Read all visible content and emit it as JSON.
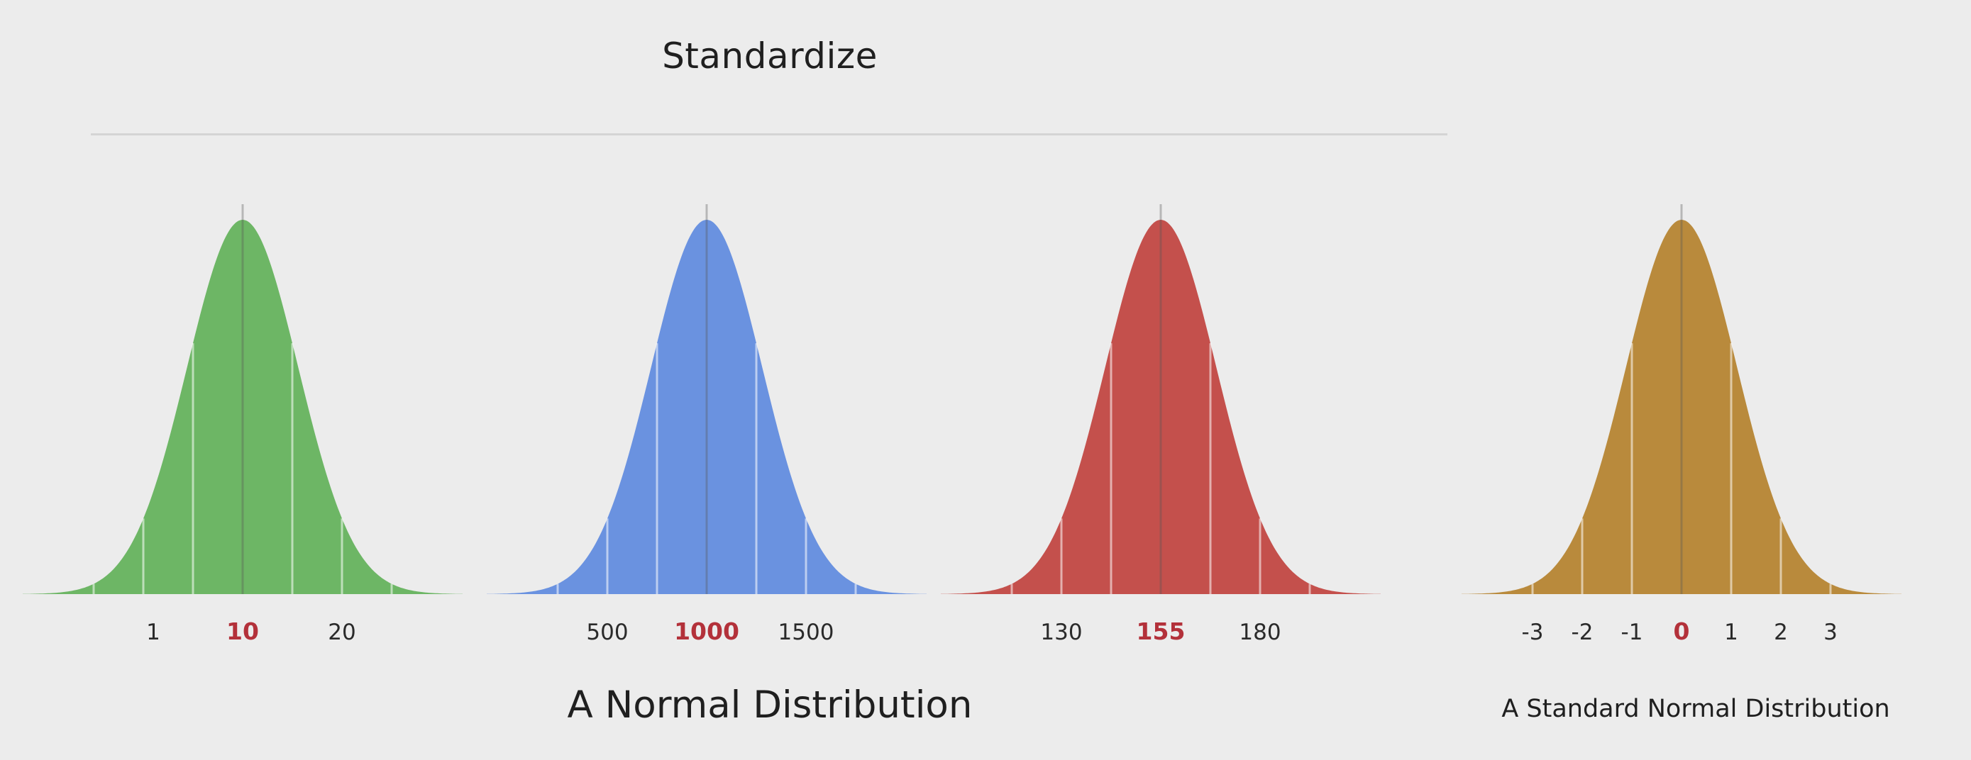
{
  "title": "Standardize",
  "captions": {
    "normal": "A Normal Distribution",
    "standard_normal": "A Standard Normal Distribution"
  },
  "colors": {
    "background": "#ececec",
    "divider": "#d4d4d4",
    "mean_label": "#b3313a",
    "tick_label": "#2a2a2a",
    "green": "#6db665",
    "blue": "#6a92e0",
    "red": "#c4504c",
    "gold": "#b98a3c"
  },
  "chart_data": [
    {
      "type": "area",
      "color": "green",
      "mean": 10,
      "std": 5,
      "tick_labels": [
        {
          "value": 1,
          "label": "1"
        },
        {
          "value": 10,
          "label": "10",
          "highlight": true
        },
        {
          "value": 20,
          "label": "20"
        }
      ]
    },
    {
      "type": "area",
      "color": "blue",
      "mean": 1000,
      "std": 250,
      "tick_labels": [
        {
          "value": 500,
          "label": "500"
        },
        {
          "value": 1000,
          "label": "1000",
          "highlight": true
        },
        {
          "value": 1500,
          "label": "1500"
        }
      ]
    },
    {
      "type": "area",
      "color": "red",
      "mean": 155,
      "std": 12.5,
      "tick_labels": [
        {
          "value": 130,
          "label": "130"
        },
        {
          "value": 155,
          "label": "155",
          "highlight": true
        },
        {
          "value": 180,
          "label": "180"
        }
      ]
    },
    {
      "type": "area",
      "color": "gold",
      "mean": 0,
      "std": 1,
      "tick_labels": [
        {
          "value": -3,
          "label": "-3"
        },
        {
          "value": -2,
          "label": "-2"
        },
        {
          "value": -1,
          "label": "-1"
        },
        {
          "value": 0,
          "label": "0",
          "highlight": true
        },
        {
          "value": 1,
          "label": "1"
        },
        {
          "value": 2,
          "label": "2"
        },
        {
          "value": 3,
          "label": "3"
        }
      ]
    }
  ]
}
